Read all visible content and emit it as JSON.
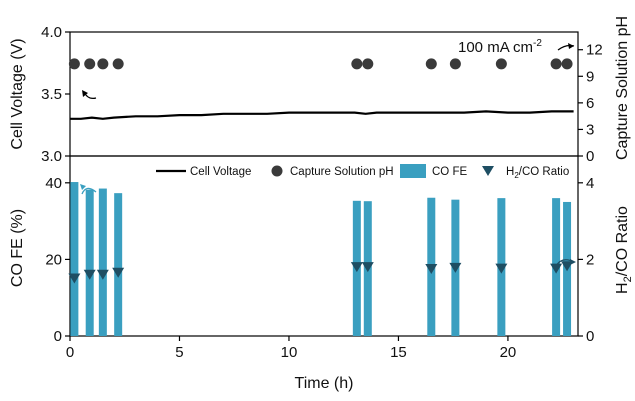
{
  "chart_data": [
    {
      "type": "line",
      "panel": "top",
      "xlabel": "",
      "xlim": [
        0,
        23.2
      ],
      "y_left": {
        "label": "Cell Voltage (V)",
        "lim": [
          3.0,
          4.0
        ],
        "ticks": [
          "3.0",
          "3.5",
          "4.0"
        ]
      },
      "y_right": {
        "label": "Capture Solution pH",
        "lim": [
          0,
          14
        ],
        "ticks": [
          "0",
          "3",
          "6",
          "9",
          "12"
        ]
      },
      "annotation": "100 mA cm",
      "annotation_sup": "-2",
      "series": [
        {
          "name": "Cell Voltage",
          "axis": "left",
          "color": "#000000",
          "x": [
            0,
            0.5,
            1,
            1.5,
            2,
            3,
            4,
            5,
            6,
            7,
            8,
            9,
            10,
            11,
            12,
            13,
            13.5,
            14,
            15,
            16,
            17,
            18,
            19,
            20,
            21,
            22,
            23
          ],
          "y": [
            3.3,
            3.3,
            3.31,
            3.3,
            3.31,
            3.32,
            3.32,
            3.33,
            3.33,
            3.34,
            3.34,
            3.34,
            3.35,
            3.35,
            3.35,
            3.35,
            3.34,
            3.35,
            3.35,
            3.35,
            3.35,
            3.35,
            3.36,
            3.35,
            3.35,
            3.36,
            3.36
          ]
        },
        {
          "name": "Capture Solution pH",
          "axis": "right",
          "color": "#3a3a3a",
          "x": [
            0.2,
            0.9,
            1.5,
            2.2,
            13.1,
            13.6,
            16.5,
            17.6,
            19.7,
            22.2,
            22.7
          ],
          "y": [
            10.4,
            10.4,
            10.4,
            10.4,
            10.4,
            10.4,
            10.4,
            10.4,
            10.4,
            10.4,
            10.4
          ]
        }
      ]
    },
    {
      "type": "bar",
      "panel": "bottom",
      "xlabel": "Time (h)",
      "xlim": [
        0,
        23.2
      ],
      "x_ticks": [
        "0",
        "5",
        "10",
        "15",
        "20"
      ],
      "y_left": {
        "label": "CO FE (%)",
        "lim": [
          0,
          47
        ],
        "ticks": [
          "0",
          "20",
          "40"
        ]
      },
      "y_right": {
        "label": "H",
        "label_sub": "2",
        "label_rest": "/CO Ratio",
        "lim": [
          0,
          4.7
        ],
        "ticks": [
          "0",
          "2",
          "4"
        ]
      },
      "series": [
        {
          "name": "CO FE",
          "axis": "left",
          "color": "#3a9fc0",
          "x": [
            0.2,
            0.9,
            1.5,
            2.2,
            13.1,
            13.6,
            16.5,
            17.6,
            19.7,
            22.2,
            22.7
          ],
          "values": [
            40.2,
            38.2,
            38.5,
            37.3,
            35.3,
            35.2,
            36.1,
            35.6,
            36.0,
            36.0,
            35.0
          ]
        },
        {
          "name": "H",
          "name_sub": "2",
          "name_rest": "/CO Ratio",
          "axis": "right",
          "color": "#1e4e63",
          "x": [
            0.2,
            0.9,
            1.5,
            2.2,
            13.1,
            13.6,
            16.5,
            17.6,
            19.7,
            22.2,
            22.7
          ],
          "values": [
            1.5,
            1.6,
            1.6,
            1.65,
            1.8,
            1.8,
            1.75,
            1.78,
            1.76,
            1.76,
            1.82
          ]
        }
      ],
      "legend": [
        "Cell Voltage",
        "Capture Solution pH",
        "CO FE",
        "H2/CO Ratio"
      ]
    }
  ]
}
